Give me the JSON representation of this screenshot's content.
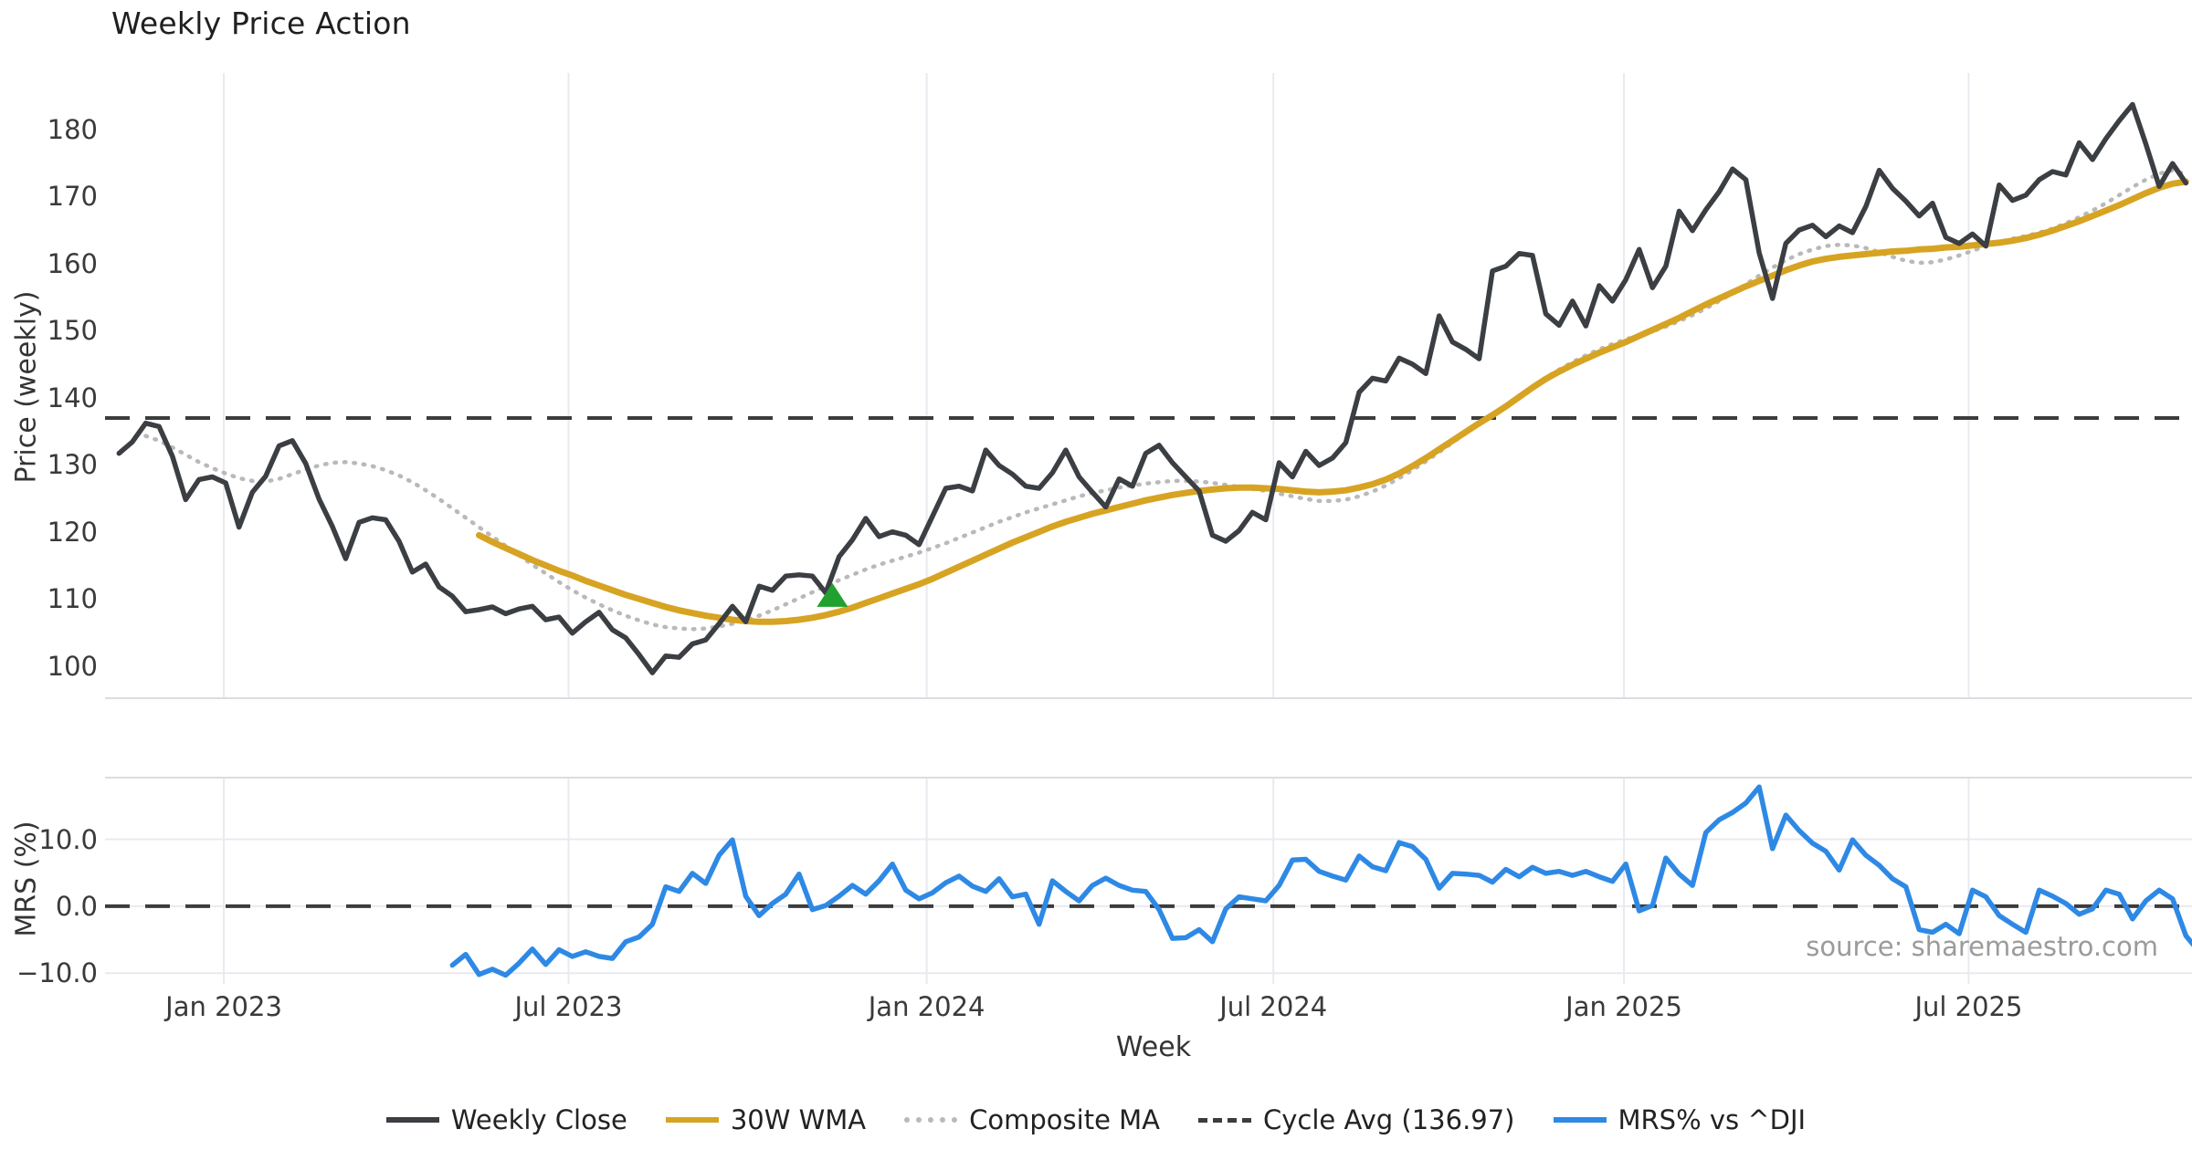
{
  "title": "Weekly Price Action",
  "source_note": "source: sharemaestro.com",
  "colors": {
    "close": "#3b3e42",
    "wma": "#d7a322",
    "composite": "#b9b9b9",
    "cycle": "#3c3c3c",
    "mrs": "#2e89e5",
    "signal": "#21a12f",
    "grid": "#e9e9f0",
    "spine": "#dcdce1"
  },
  "axes": {
    "price_label": "Price (weekly)",
    "mrs_label": "MRS (%)",
    "x_label": "Week",
    "price_ticks": [
      {
        "label": "100",
        "value": 100
      },
      {
        "label": "110",
        "value": 110
      },
      {
        "label": "120",
        "value": 120
      },
      {
        "label": "130",
        "value": 130
      },
      {
        "label": "140",
        "value": 140
      },
      {
        "label": "150",
        "value": 150
      },
      {
        "label": "160",
        "value": 160
      },
      {
        "label": "170",
        "value": 170
      },
      {
        "label": "180",
        "value": 180
      }
    ],
    "mrs_ticks": [
      {
        "label": "10.0",
        "value": 10
      },
      {
        "label": "0.0",
        "value": 0
      },
      {
        "label": "−10.0",
        "value": -10
      }
    ],
    "x_ticks": [
      {
        "label": "Jan 2023",
        "week": 7.86
      },
      {
        "label": "Jul 2023",
        "week": 33.71
      },
      {
        "label": "Jan 2024",
        "week": 60.57
      },
      {
        "label": "Jul 2024",
        "week": 86.57
      },
      {
        "label": "Jan 2025",
        "week": 112.86
      },
      {
        "label": "Jul 2025",
        "week": 138.71
      }
    ]
  },
  "legend": {
    "items": [
      {
        "label": "Weekly Close",
        "swatch": "solid",
        "color_key": "close"
      },
      {
        "label": "30W WMA",
        "swatch": "solid",
        "color_key": "wma"
      },
      {
        "label": "Composite MA",
        "swatch": "dotted",
        "color_key": "composite"
      },
      {
        "label": "Cycle Avg (136.97)",
        "swatch": "dashed",
        "color_key": "cycle"
      },
      {
        "label": "MRS% vs ^DJI",
        "swatch": "solid",
        "color_key": "mrs"
      }
    ]
  },
  "chart_data": {
    "type": "line",
    "title": "Weekly Price Action",
    "xlabel": "Week",
    "x_unit": "weeks",
    "start_date": "2022-11-07",
    "weeks_total": 156,
    "panels": [
      {
        "ylabel": "Price (weekly)",
        "ylim": [
          95.2,
          188.4
        ],
        "grid": "vertical-only",
        "cycle_avg": 136.97,
        "signal_marker": {
          "week": 53.5,
          "date_approx": "2023-11-16",
          "price": 110.6,
          "shape": "triangle-up"
        },
        "series": [
          {
            "name": "Weekly Close",
            "start_week": 0,
            "values": [
              131.7,
              133.4,
              136.2,
              135.7,
              131.3,
              124.8,
              127.8,
              128.2,
              127.3,
              120.7,
              125.9,
              128.3,
              132.8,
              133.6,
              130.2,
              124.9,
              120.8,
              116.0,
              121.4,
              122.1,
              121.8,
              118.6,
              114.0,
              115.2,
              111.8,
              110.4,
              108.1,
              108.4,
              108.8,
              107.8,
              108.5,
              108.9,
              106.9,
              107.3,
              104.9,
              106.6,
              108.0,
              105.4,
              104.2,
              101.7,
              99.0,
              101.5,
              101.3,
              103.3,
              103.9,
              106.3,
              108.9,
              106.6,
              111.9,
              111.3,
              113.4,
              113.6,
              113.4,
              110.9,
              116.3,
              118.8,
              122.0,
              119.3,
              120.0,
              119.5,
              118.1,
              122.3,
              126.5,
              126.8,
              126.1,
              132.2,
              129.9,
              128.6,
              126.8,
              126.5,
              128.8,
              132.2,
              128.2,
              125.9,
              123.7,
              127.9,
              126.8,
              131.7,
              132.9,
              130.3,
              128.2,
              126.1,
              119.5,
              118.6,
              120.2,
              122.9,
              121.8,
              130.3,
              128.2,
              132.0,
              129.9,
              131.0,
              133.3,
              140.8,
              142.9,
              142.5,
              145.9,
              145.0,
              143.6,
              152.2,
              148.3,
              147.2,
              145.8,
              158.9,
              159.6,
              161.5,
              161.2,
              152.5,
              150.8,
              154.4,
              150.7,
              156.7,
              154.4,
              157.6,
              162.1,
              156.4,
              159.6,
              167.8,
              164.9,
              168.0,
              170.7,
              174.1,
              172.5,
              161.6,
              154.8,
              163.0,
              165.0,
              165.7,
              164.0,
              165.6,
              164.6,
              168.5,
              173.9,
              171.2,
              169.3,
              167.1,
              169.0,
              163.9,
              163.0,
              164.4,
              162.6,
              171.7,
              169.4,
              170.2,
              172.5,
              173.7,
              173.2,
              178.0,
              175.5,
              178.6,
              181.3,
              183.7,
              177.8,
              171.5,
              174.9,
              172.0
            ]
          },
          {
            "name": "30W WMA",
            "start_week": 27,
            "values": [
              119.5,
              118.5,
              117.6,
              116.7,
              115.8,
              115.0,
              114.2,
              113.5,
              112.7,
              112.0,
              111.3,
              110.6,
              110.0,
              109.4,
              108.8,
              108.3,
              107.9,
              107.5,
              107.2,
              106.9,
              106.7,
              106.6,
              106.6,
              106.7,
              106.9,
              107.2,
              107.6,
              108.1,
              108.7,
              109.4,
              110.1,
              110.8,
              111.5,
              112.2,
              113.0,
              113.9,
              114.8,
              115.7,
              116.6,
              117.5,
              118.4,
              119.2,
              120.0,
              120.8,
              121.5,
              122.1,
              122.7,
              123.2,
              123.7,
              124.2,
              124.7,
              125.1,
              125.5,
              125.8,
              126.1,
              126.3,
              126.5,
              126.6,
              126.6,
              126.5,
              126.4,
              126.2,
              126.0,
              125.9,
              126.0,
              126.2,
              126.6,
              127.1,
              127.8,
              128.7,
              129.8,
              131.0,
              132.3,
              133.6,
              134.9,
              136.2,
              137.4,
              138.7,
              140.1,
              141.5,
              142.8,
              143.9,
              144.9,
              145.8,
              146.7,
              147.5,
              148.3,
              149.2,
              150.1,
              151.0,
              151.9,
              152.9,
              153.9,
              154.8,
              155.7,
              156.6,
              157.4,
              158.2,
              159.0,
              159.7,
              160.3,
              160.7,
              161.0,
              161.2,
              161.4,
              161.6,
              161.8,
              161.9,
              162.1,
              162.2,
              162.4,
              162.5,
              162.7,
              162.9,
              163.1,
              163.4,
              163.8,
              164.3,
              164.9,
              165.6,
              166.3,
              167.1,
              167.9,
              168.7,
              169.6,
              170.5,
              171.3,
              171.9,
              172.2
            ]
          },
          {
            "name": "Composite MA",
            "start_week": 2,
            "values": [
              134.3,
              133.6,
              132.6,
              131.5,
              130.4,
              129.5,
              128.7,
              128.0,
              127.6,
              127.5,
              127.9,
              128.6,
              129.3,
              129.9,
              130.3,
              130.4,
              130.2,
              129.8,
              129.2,
              128.4,
              127.4,
              126.2,
              124.9,
              123.5,
              122.1,
              120.7,
              119.3,
              117.9,
              116.5,
              115.1,
              113.8,
              112.5,
              111.3,
              110.2,
              109.2,
              108.3,
              107.5,
              106.8,
              106.2,
              105.8,
              105.6,
              105.5,
              105.6,
              105.9,
              106.3,
              106.8,
              107.5,
              108.3,
              109.2,
              110.1,
              111.0,
              111.9,
              112.8,
              113.6,
              114.4,
              115.1,
              115.7,
              116.3,
              116.9,
              117.6,
              118.3,
              119.1,
              119.9,
              120.7,
              121.5,
              122.2,
              122.9,
              123.5,
              124.1,
              124.7,
              125.3,
              125.8,
              126.2,
              126.6,
              126.9,
              127.2,
              127.4,
              127.6,
              127.6,
              127.5,
              127.3,
              127.0,
              126.7,
              126.4,
              126.1,
              125.7,
              125.3,
              124.9,
              124.6,
              124.6,
              124.8,
              125.3,
              126.0,
              126.9,
              128.0,
              129.2,
              130.5,
              131.9,
              133.3,
              134.7,
              136.1,
              137.5,
              138.9,
              140.3,
              141.7,
              143.0,
              144.2,
              145.3,
              146.3,
              147.2,
              148.0,
              148.7,
              149.3,
              149.9,
              150.6,
              151.4,
              152.3,
              153.3,
              154.4,
              155.6,
              156.9,
              158.2,
              159.4,
              160.5,
              161.4,
              162.1,
              162.6,
              162.8,
              162.7,
              162.3,
              161.7,
              161.0,
              160.4,
              160.1,
              160.2,
              160.6,
              161.2,
              161.9,
              162.6,
              163.2,
              163.7,
              164.1,
              164.6,
              165.2,
              166.0,
              166.9,
              167.9,
              169.0,
              170.2,
              171.4,
              172.5,
              173.4,
              173.9,
              173.3
            ]
          }
        ]
      },
      {
        "ylabel": "MRS (%)",
        "ylim": [
          -11.6,
          19.2
        ],
        "grid": "horizontal-and-vertical",
        "zero_line": 0,
        "series": [
          {
            "name": "MRS% vs ^DJI",
            "start_week": 25,
            "values": [
              -8.8,
              -7.2,
              -10.2,
              -9.4,
              -10.3,
              -8.5,
              -6.4,
              -8.7,
              -6.5,
              -7.5,
              -6.8,
              -7.5,
              -7.8,
              -5.3,
              -4.6,
              -2.7,
              2.9,
              2.2,
              4.9,
              3.4,
              7.6,
              9.9,
              1.5,
              -1.4,
              0.4,
              1.8,
              4.8,
              -0.5,
              0.1,
              1.5,
              3.1,
              1.8,
              3.8,
              6.3,
              2.4,
              1.1,
              2.0,
              3.5,
              4.5,
              3.0,
              2.2,
              4.1,
              1.4,
              1.8,
              -2.7,
              3.8,
              2.2,
              0.8,
              3.1,
              4.2,
              3.1,
              2.4,
              2.2,
              -0.5,
              -4.8,
              -4.7,
              -3.5,
              -5.3,
              -0.4,
              1.4,
              1.1,
              0.8,
              3.1,
              6.9,
              7.0,
              5.2,
              4.5,
              3.9,
              7.5,
              5.9,
              5.3,
              9.5,
              8.9,
              7.0,
              2.7,
              4.9,
              4.8,
              4.6,
              3.6,
              5.5,
              4.4,
              5.8,
              4.9,
              5.2,
              4.6,
              5.2,
              4.4,
              3.7,
              6.3,
              -0.7,
              0.1,
              7.2,
              4.8,
              3.1,
              11.0,
              12.9,
              14.0,
              15.4,
              17.8,
              8.6,
              13.6,
              11.3,
              9.4,
              8.2,
              5.4,
              9.9,
              7.6,
              6.1,
              4.1,
              2.9,
              -3.5,
              -3.9,
              -2.7,
              -4.1,
              2.4,
              1.4,
              -1.4,
              -2.7,
              -3.9,
              2.4,
              1.5,
              0.4,
              -1.2,
              -0.4,
              2.4,
              1.8,
              -1.9,
              0.8,
              2.4,
              1.1,
              -4.4,
              -6.8
            ]
          }
        ]
      }
    ]
  }
}
